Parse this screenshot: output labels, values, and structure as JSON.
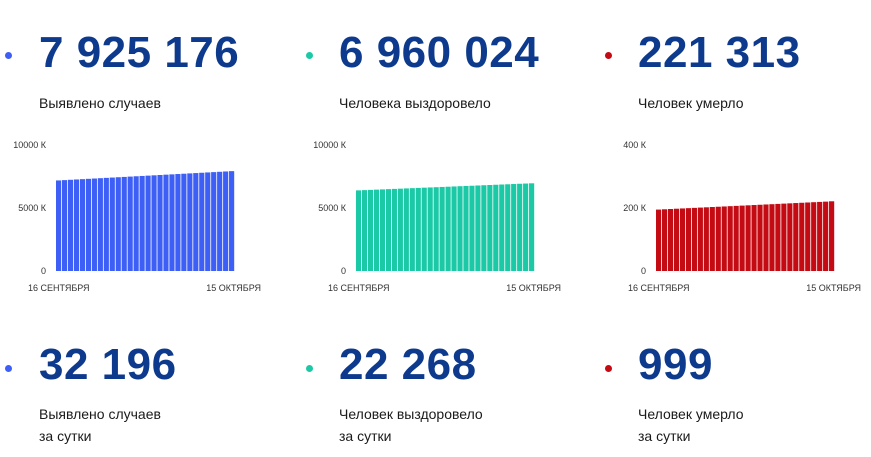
{
  "colors": {
    "cases": "#3e5ff5",
    "recovered": "#1bc9a6",
    "deaths": "#c40a12",
    "number": "#0d3a8c"
  },
  "totals": [
    {
      "value": "7 925 176",
      "label": "Выявлено случаев",
      "dot_color": "#3e5ff5"
    },
    {
      "value": "6 960 024",
      "label": "Человека выздоровело",
      "dot_color": "#1bc9a6"
    },
    {
      "value": "221 313",
      "label": "Человек умерло",
      "dot_color": "#c40a12"
    }
  ],
  "daily": [
    {
      "value": "32 196",
      "label_line1": "Выявлено случаев",
      "label_line2": "за сутки",
      "dot_color": "#3e5ff5"
    },
    {
      "value": "22 268",
      "label_line1": "Человек выздоровело",
      "label_line2": "за сутки",
      "dot_color": "#1bc9a6"
    },
    {
      "value": "999",
      "label_line1": "Человек умерло",
      "label_line2": "за сутки",
      "dot_color": "#c40a12"
    }
  ],
  "chart_data": [
    {
      "type": "bar",
      "color": "#3e5ff5",
      "ylim": [
        0,
        10000
      ],
      "y_ticks": [
        0,
        5000,
        10000
      ],
      "y_tick_labels": [
        "0",
        "5000 К",
        "10000 К"
      ],
      "x_tick_labels": [
        "16 СЕНТЯБРЯ",
        "15 ОКТЯБРЯ"
      ],
      "values": [
        7188,
        7213,
        7239,
        7264,
        7289,
        7315,
        7340,
        7366,
        7391,
        7416,
        7442,
        7467,
        7493,
        7518,
        7543,
        7569,
        7594,
        7620,
        7645,
        7670,
        7696,
        7721,
        7747,
        7772,
        7797,
        7823,
        7848,
        7874,
        7899,
        7925
      ]
    },
    {
      "type": "bar",
      "color": "#1bc9a6",
      "ylim": [
        0,
        10000
      ],
      "y_ticks": [
        0,
        5000,
        10000
      ],
      "y_tick_labels": [
        "0",
        "5000 К",
        "10000 К"
      ],
      "x_tick_labels": [
        "16 СЕНТЯБРЯ",
        "15 ОКТЯБРЯ"
      ],
      "values": [
        6400,
        6419,
        6439,
        6458,
        6477,
        6497,
        6516,
        6535,
        6555,
        6574,
        6593,
        6613,
        6632,
        6651,
        6671,
        6690,
        6709,
        6729,
        6748,
        6767,
        6787,
        6806,
        6825,
        6845,
        6864,
        6883,
        6903,
        6922,
        6941,
        6960
      ]
    },
    {
      "type": "bar",
      "color": "#c40a12",
      "ylim": [
        0,
        400
      ],
      "y_ticks": [
        0,
        200,
        400
      ],
      "y_tick_labels": [
        "0",
        "200 К",
        "400 К"
      ],
      "x_tick_labels": [
        "16 СЕНТЯБРЯ",
        "15 ОКТЯБРЯ"
      ],
      "values": [
        195.0,
        195.9,
        196.8,
        197.7,
        198.6,
        199.5,
        200.4,
        201.3,
        202.2,
        203.1,
        204.0,
        204.9,
        205.8,
        206.7,
        207.6,
        208.5,
        209.4,
        210.3,
        211.2,
        212.1,
        213.0,
        213.9,
        214.8,
        215.7,
        216.6,
        217.5,
        218.4,
        219.3,
        220.2,
        221.3
      ]
    }
  ]
}
